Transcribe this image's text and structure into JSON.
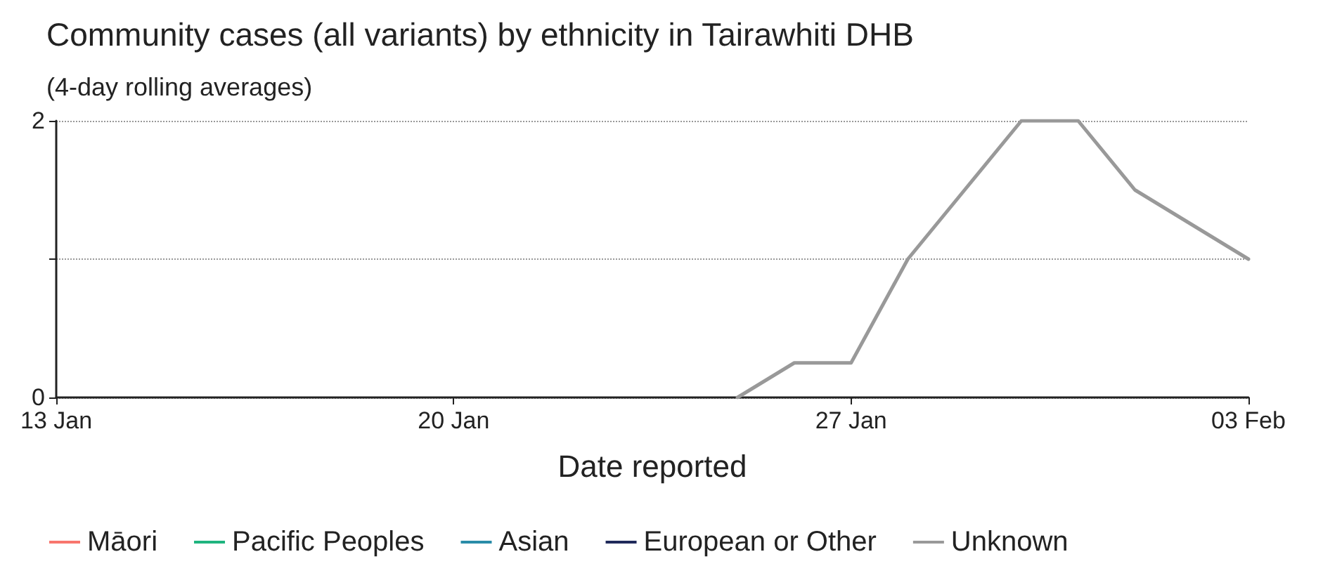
{
  "chart_data": {
    "type": "line",
    "title": "Community cases (all variants) by ethnicity in Tairawhiti DHB",
    "subtitle": "(4-day rolling averages)",
    "xlabel": "Date reported",
    "x": [
      "--01-25",
      "--01-26",
      "--01-27",
      "--01-28",
      "--01-29",
      "--01-30",
      "--01-31",
      "--02-01",
      "--02-02",
      "--02-03"
    ],
    "series": [
      {
        "name": "Māori",
        "color": "#f8766d",
        "values": [
          null,
          null,
          null,
          null,
          null,
          null,
          null,
          null,
          null,
          null
        ]
      },
      {
        "name": "Pacific Peoples",
        "color": "#1fb47f",
        "values": [
          null,
          null,
          null,
          null,
          null,
          null,
          null,
          null,
          null,
          null
        ]
      },
      {
        "name": "Asian",
        "color": "#2a8ca8",
        "values": [
          null,
          null,
          null,
          null,
          null,
          null,
          null,
          null,
          null,
          null
        ]
      },
      {
        "name": "European or Other",
        "color": "#1f2a5a",
        "values": [
          null,
          null,
          null,
          null,
          null,
          null,
          null,
          null,
          null,
          null
        ]
      },
      {
        "name": "Unknown",
        "color": "#999999",
        "values": [
          0,
          0.25,
          0.25,
          1,
          1.5,
          2,
          2,
          1.5,
          1.25,
          1
        ]
      }
    ],
    "xlim": [
      "--01-13",
      "--02-03"
    ],
    "xticks": [
      {
        "value": "--01-13",
        "label": "13 Jan"
      },
      {
        "value": "--01-20",
        "label": "20 Jan"
      },
      {
        "value": "--01-27",
        "label": "27 Jan"
      },
      {
        "value": "--02-03",
        "label": "03 Feb"
      }
    ],
    "ylim": [
      0,
      2
    ],
    "yticks": [
      0,
      {
        "value": 1,
        "label": null
      },
      2
    ],
    "grid": "y",
    "legend": "bottom",
    "marker": "none",
    "line_style": "solid"
  }
}
